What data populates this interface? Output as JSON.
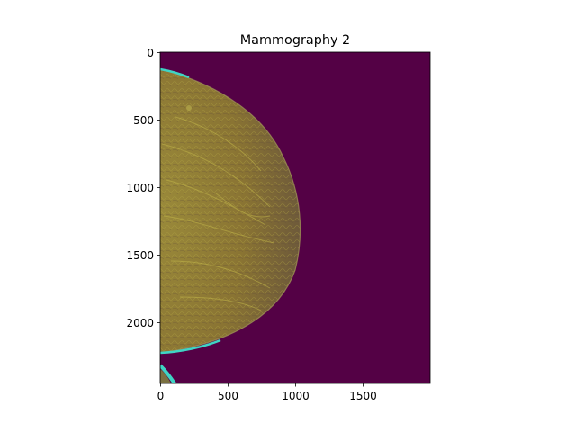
{
  "figure": {
    "title": "Mammography 2"
  },
  "image": {
    "description_type": "mammogram",
    "colormap": "viridis-like (dark purple background, yellow/green tissue)",
    "background_color": "#540145",
    "tissue_color": "#8a7a32",
    "edge_color": "#3fd4c4"
  },
  "axes": {
    "x_ticks": [
      "0",
      "500",
      "1000",
      "1500"
    ],
    "y_ticks": [
      "0",
      "500",
      "1000",
      "1500",
      "2000"
    ],
    "x_range": [
      0,
      2000
    ],
    "y_range": [
      2450,
      0
    ]
  }
}
